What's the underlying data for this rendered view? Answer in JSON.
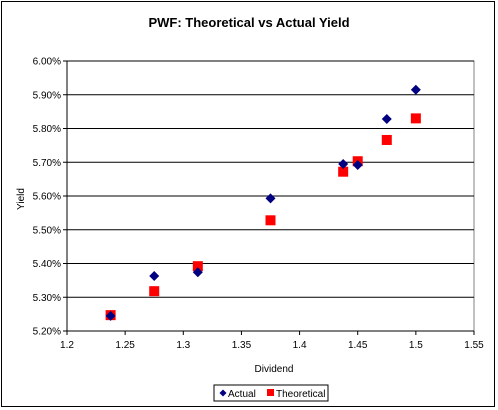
{
  "chart_data": {
    "type": "scatter",
    "title": "PWF: Theoretical vs Actual Yield",
    "xlabel": "Dividend",
    "ylabel": "Yield",
    "xlim": [
      1.2,
      1.55
    ],
    "ylim": [
      0.052,
      0.06
    ],
    "x_ticks": [
      1.2,
      1.25,
      1.3,
      1.35,
      1.4,
      1.45,
      1.5,
      1.55
    ],
    "x_tick_labels": [
      "1.2",
      "1.25",
      "1.3",
      "1.35",
      "1.4",
      "1.45",
      "1.5",
      "1.55"
    ],
    "y_ticks": [
      0.052,
      0.053,
      0.054,
      0.055,
      0.056,
      0.057,
      0.058,
      0.059,
      0.06
    ],
    "y_tick_labels": [
      "5.20%",
      "5.30%",
      "5.40%",
      "5.50%",
      "5.60%",
      "5.70%",
      "5.80%",
      "5.90%",
      "6.00%"
    ],
    "grid": "horizontal",
    "legend_position": "bottom",
    "series": [
      {
        "name": "Actual",
        "marker": "diamond",
        "color": "#000080",
        "points": [
          {
            "x": 1.2375,
            "y": 0.05245
          },
          {
            "x": 1.275,
            "y": 0.05363
          },
          {
            "x": 1.3125,
            "y": 0.05374
          },
          {
            "x": 1.375,
            "y": 0.05593
          },
          {
            "x": 1.4375,
            "y": 0.05695
          },
          {
            "x": 1.45,
            "y": 0.05692
          },
          {
            "x": 1.475,
            "y": 0.05828
          },
          {
            "x": 1.5,
            "y": 0.05915
          }
        ]
      },
      {
        "name": "Theoretical",
        "marker": "square",
        "color": "#ff0000",
        "points": [
          {
            "x": 1.2375,
            "y": 0.05247
          },
          {
            "x": 1.275,
            "y": 0.05318
          },
          {
            "x": 1.3125,
            "y": 0.05392
          },
          {
            "x": 1.375,
            "y": 0.05528
          },
          {
            "x": 1.4375,
            "y": 0.05672
          },
          {
            "x": 1.45,
            "y": 0.05703
          },
          {
            "x": 1.475,
            "y": 0.05766
          },
          {
            "x": 1.5,
            "y": 0.0583
          }
        ]
      }
    ]
  }
}
